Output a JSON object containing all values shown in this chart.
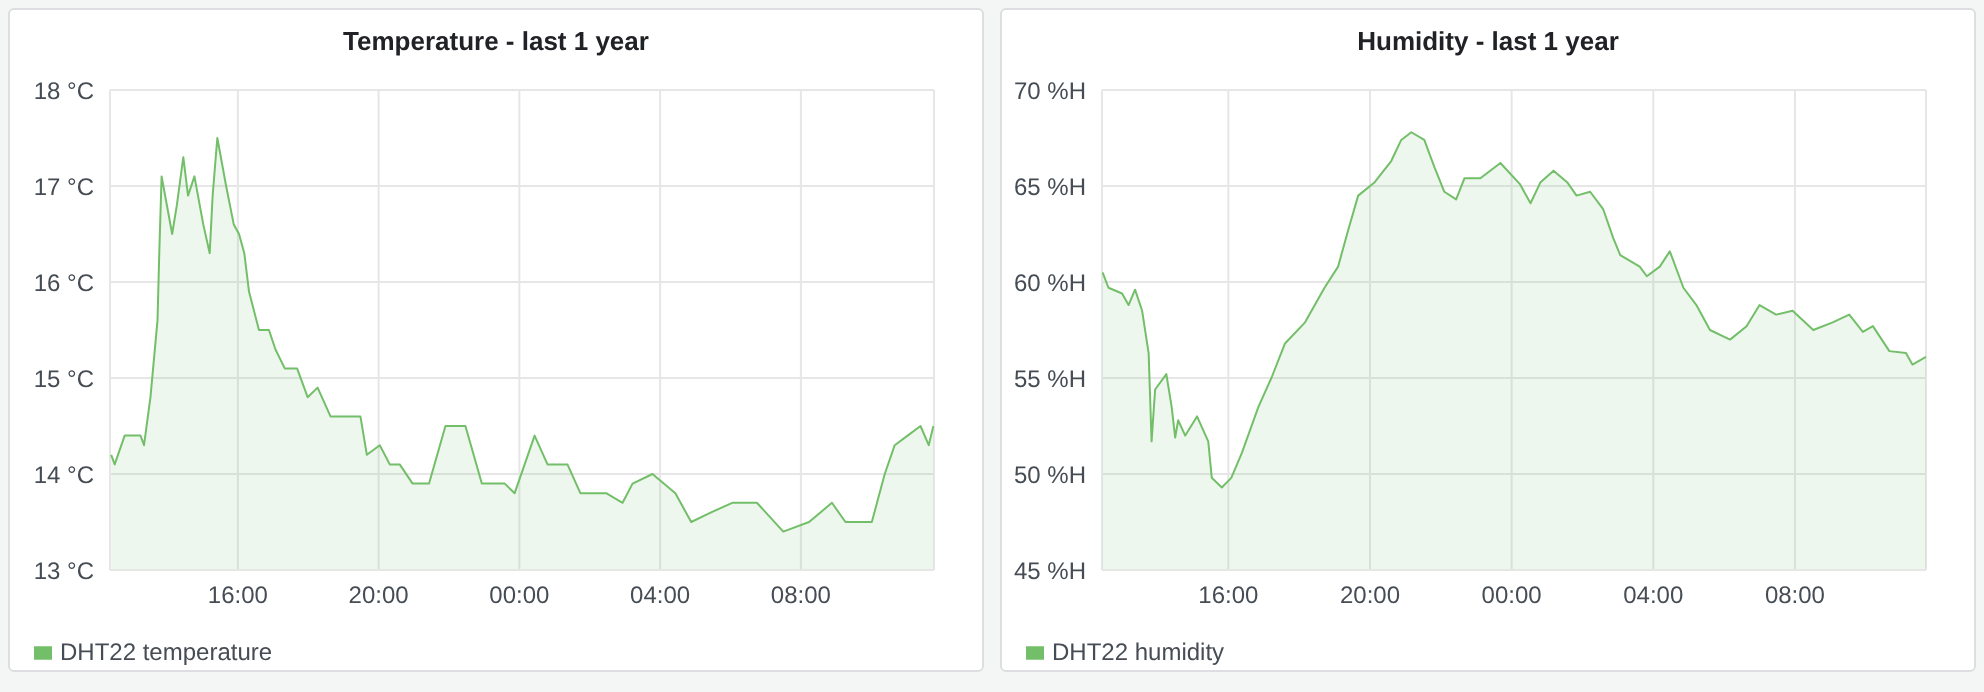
{
  "chart_data": [
    {
      "type": "area",
      "title": "Temperature - last 1 year",
      "x": [
        "--01-01T12:24",
        "--01-01T12:30",
        "--01-01T12:47",
        "--01-01T13:14",
        "--01-01T13:20",
        "--01-01T13:31",
        "--01-01T13:43",
        "--01-01T13:46",
        "--01-01T13:50",
        "--01-01T13:59",
        "--01-01T14:08",
        "--01-01T14:16",
        "--01-01T14:27",
        "--01-01T14:35",
        "--01-01T14:46",
        "--01-01T15:01",
        "--01-01T15:12",
        "--01-01T15:17",
        "--01-01T15:25",
        "--01-01T15:40",
        "--01-01T15:53",
        "--01-01T16:02",
        "--01-01T16:11",
        "--01-01T16:19",
        "--01-01T16:36",
        "--01-01T16:53",
        "--01-01T17:04",
        "--01-01T17:20",
        "--01-01T17:41",
        "--01-01T17:59",
        "--01-01T18:16",
        "--01-01T18:38",
        "--01-01T19:07",
        "--01-01T19:29",
        "--01-01T19:40",
        "--01-01T20:02",
        "--01-01T20:19",
        "--01-01T20:36",
        "--01-01T20:58",
        "--01-01T21:26",
        "--01-01T21:54",
        "--01-01T22:28",
        "--01-01T22:56",
        "--01-01T23:35",
        "--01-01T23:52",
        "--01-02T00:26",
        "--01-02T00:48",
        "--01-02T01:22",
        "--01-02T01:44",
        "--01-02T02:28",
        "--01-02T02:56",
        "--01-02T03:13",
        "--01-02T03:47",
        "--01-02T04:26",
        "--01-02T04:53",
        "--01-02T05:27",
        "--01-02T06:03",
        "--01-02T06:45",
        "--01-02T07:30",
        "--01-02T08:14",
        "--01-02T08:53",
        "--01-02T09:16",
        "--01-02T10:01",
        "--01-02T10:23",
        "--01-02T10:40",
        "--01-02T11:02",
        "--01-02T11:24",
        "--01-02T11:38",
        "--01-02T11:46"
      ],
      "series": [
        {
          "name": "DHT22 temperature",
          "color": "#73bf69",
          "values": [
            14.2,
            14.1,
            14.4,
            14.4,
            14.3,
            14.8,
            15.6,
            16.3,
            17.1,
            16.8,
            16.5,
            16.8,
            17.3,
            16.9,
            17.1,
            16.6,
            16.3,
            16.9,
            17.5,
            17.0,
            16.6,
            16.5,
            16.3,
            15.9,
            15.5,
            15.5,
            15.3,
            15.1,
            15.1,
            14.8,
            14.9,
            14.6,
            14.6,
            14.6,
            14.2,
            14.3,
            14.1,
            14.1,
            13.9,
            13.9,
            14.5,
            14.5,
            13.9,
            13.9,
            13.8,
            14.4,
            14.1,
            14.1,
            13.8,
            13.8,
            13.7,
            13.9,
            14.0,
            13.8,
            13.5,
            13.6,
            13.7,
            13.7,
            13.4,
            13.5,
            13.7,
            13.5,
            13.5,
            14.0,
            14.3,
            14.4,
            14.5,
            14.3,
            14.5
          ]
        }
      ],
      "xlim": [
        "--01-01T12:22",
        "--01-02T11:47"
      ],
      "xticks": [
        {
          "value": "--01-01T16:00",
          "label": "16:00"
        },
        {
          "value": "--01-01T20:00",
          "label": "20:00"
        },
        {
          "value": "--01-02T00:00",
          "label": "00:00"
        },
        {
          "value": "--01-02T04:00",
          "label": "04:00"
        },
        {
          "value": "--01-02T08:00",
          "label": "08:00"
        }
      ],
      "ylim": [
        13,
        18
      ],
      "yticks": [
        {
          "value": 13,
          "label": "13 °C"
        },
        {
          "value": 14,
          "label": "14 °C"
        },
        {
          "value": 15,
          "label": "15 °C"
        },
        {
          "value": 16,
          "label": "16 °C"
        },
        {
          "value": 17,
          "label": "17 °C"
        },
        {
          "value": 18,
          "label": "18 °C"
        }
      ],
      "grid": true,
      "legend": "bottom left"
    },
    {
      "type": "area",
      "title": "Humidity - last 1 year",
      "x": [
        "--01-01T12:27",
        "--01-01T12:37",
        "--01-01T13:00",
        "--01-01T13:11",
        "--01-01T13:22",
        "--01-01T13:34",
        "--01-01T13:45",
        "--01-01T13:50",
        "--01-01T13:56",
        "--01-01T14:15",
        "--01-01T14:24",
        "--01-01T14:30",
        "--01-01T14:35",
        "--01-01T14:47",
        "--01-01T15:07",
        "--01-01T15:26",
        "--01-01T15:32",
        "--01-01T15:49",
        "--01-01T16:05",
        "--01-01T16:23",
        "--01-01T16:51",
        "--01-01T17:13",
        "--01-01T17:36",
        "--01-01T18:10",
        "--01-01T18:43",
        "--01-01T19:06",
        "--01-01T19:23",
        "--01-01T19:40",
        "--01-01T20:08",
        "--01-01T20:36",
        "--01-01T20:53",
        "--01-01T21:10",
        "--01-01T21:32",
        "--01-01T21:49",
        "--01-01T22:06",
        "--01-01T22:26",
        "--01-01T22:40",
        "--01-01T23:07",
        "--01-01T23:41",
        "--01-02T00:14",
        "--01-02T00:32",
        "--01-02T00:49",
        "--01-02T01:11",
        "--01-02T01:34",
        "--01-02T01:50",
        "--01-02T02:13",
        "--01-02T02:35",
        "--01-02T02:52",
        "--01-02T03:04",
        "--01-02T03:37",
        "--01-02T03:49",
        "--01-02T04:11",
        "--01-02T04:28",
        "--01-02T04:51",
        "--01-02T05:13",
        "--01-02T05:36",
        "--01-02T06:10",
        "--01-02T06:38",
        "--01-02T07:00",
        "--01-02T07:28",
        "--01-02T07:56",
        "--01-02T08:31",
        "--01-02T09:04",
        "--01-02T09:32",
        "--01-02T09:55",
        "--01-02T10:12",
        "--01-02T10:40",
        "--01-02T11:08",
        "--01-02T11:19",
        "--01-02T11:42"
      ],
      "series": [
        {
          "name": "DHT22 humidity",
          "color": "#73bf69",
          "values": [
            60.5,
            59.7,
            59.4,
            58.8,
            59.6,
            58.5,
            56.3,
            51.7,
            54.4,
            55.2,
            53.5,
            51.9,
            52.8,
            52.0,
            53.0,
            51.7,
            49.8,
            49.3,
            49.8,
            51.1,
            53.5,
            55.0,
            56.8,
            57.9,
            59.7,
            60.8,
            62.7,
            64.5,
            65.2,
            66.3,
            67.4,
            67.8,
            67.4,
            66.0,
            64.7,
            64.3,
            65.4,
            65.4,
            66.2,
            65.1,
            64.1,
            65.2,
            65.8,
            65.2,
            64.5,
            64.7,
            63.8,
            62.3,
            61.4,
            60.8,
            60.3,
            60.8,
            61.6,
            59.7,
            58.8,
            57.5,
            57.0,
            57.7,
            58.8,
            58.3,
            58.5,
            57.5,
            57.9,
            58.3,
            57.4,
            57.7,
            56.4,
            56.3,
            55.7,
            56.1
          ]
        }
      ],
      "xlim": [
        "--01-01T12:26",
        "--01-02T11:42"
      ],
      "xticks": [
        {
          "value": "--01-01T16:00",
          "label": "16:00"
        },
        {
          "value": "--01-01T20:00",
          "label": "20:00"
        },
        {
          "value": "--01-02T00:00",
          "label": "00:00"
        },
        {
          "value": "--01-02T04:00",
          "label": "04:00"
        },
        {
          "value": "--01-02T08:00",
          "label": "08:00"
        }
      ],
      "ylim": [
        45,
        70
      ],
      "yticks": [
        {
          "value": 45,
          "label": "45 %H"
        },
        {
          "value": 50,
          "label": "50 %H"
        },
        {
          "value": 55,
          "label": "55 %H"
        },
        {
          "value": 60,
          "label": "60 %H"
        },
        {
          "value": 65,
          "label": "65 %H"
        },
        {
          "value": 70,
          "label": "70 %H"
        }
      ],
      "grid": true,
      "legend": "bottom left"
    }
  ]
}
